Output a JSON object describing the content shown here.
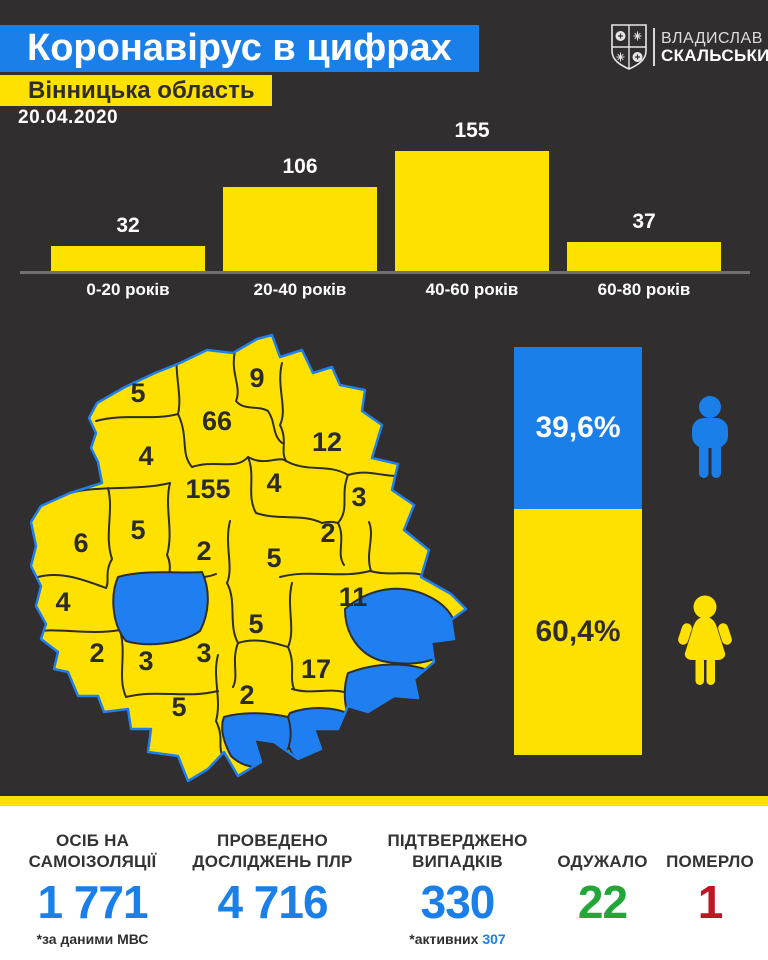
{
  "colors": {
    "background": "#302e2e",
    "accent_blue": "#1b7fe9",
    "accent_yellow": "#ffe100",
    "map_no_case_blue": "#1f7ff0",
    "recovered_green": "#21a637",
    "died_red": "#bd1622"
  },
  "header": {
    "title": "Коронавірус в цифрах",
    "region": "Вінницька область",
    "date": "20.04.2020",
    "logo_name_line1": "ВЛАДИСЛАВ",
    "logo_name_line2": "СКАЛЬСЬКИЙ",
    "logo_icon": "shield-emblem-icon"
  },
  "chart_data": [
    {
      "type": "bar",
      "categories": [
        "0-20 років",
        "20-40 років",
        "40-60 років",
        "60-80 років"
      ],
      "values": [
        32,
        106,
        155,
        37
      ],
      "bar_color": "#ffe100",
      "value_label_color": "#ffffff",
      "baseline": true
    },
    {
      "type": "bar",
      "subtype": "stacked-percent",
      "series": [
        {
          "icon": "male-icon",
          "label": "39,6%",
          "value": 39.6,
          "color": "#1b7fe9"
        },
        {
          "icon": "female-icon",
          "label": "60,4%",
          "value": 60.4,
          "color": "#ffe100"
        }
      ]
    },
    {
      "type": "map",
      "region": "Вінницька область",
      "district_cases": [
        5,
        9,
        66,
        4,
        12,
        155,
        4,
        3,
        2,
        5,
        2,
        5,
        6,
        4,
        11,
        5,
        2,
        3,
        3,
        17,
        2,
        5
      ],
      "districts_without_cases": 5,
      "case_fill": "#ffe100",
      "no_case_fill": "#1f7ff0"
    }
  ],
  "footer": {
    "stats": [
      {
        "label_lines": [
          "ОСІБ НА",
          "САМОІЗОЛЯЦІЇ"
        ],
        "value": "1 771",
        "note": "*за даними МВС",
        "value_color": "#1b7fe9"
      },
      {
        "label_lines": [
          "ПРОВЕДЕНО",
          "ДОСЛІДЖЕНЬ ПЛР"
        ],
        "value": "4 716",
        "value_color": "#1b7fe9"
      },
      {
        "label_lines": [
          "ПІДТВЕРДЖЕНО",
          "ВИПАДКІВ"
        ],
        "value": "330",
        "note_prefix": "*активних",
        "note_value": "307",
        "value_color": "#1b7fe9"
      },
      {
        "label_lines": [
          "ОДУЖАЛО"
        ],
        "value": "22",
        "value_color": "#21a637"
      },
      {
        "label_lines": [
          "ПОМЕРЛО"
        ],
        "value": "1",
        "value_color": "#bd1622"
      }
    ]
  }
}
